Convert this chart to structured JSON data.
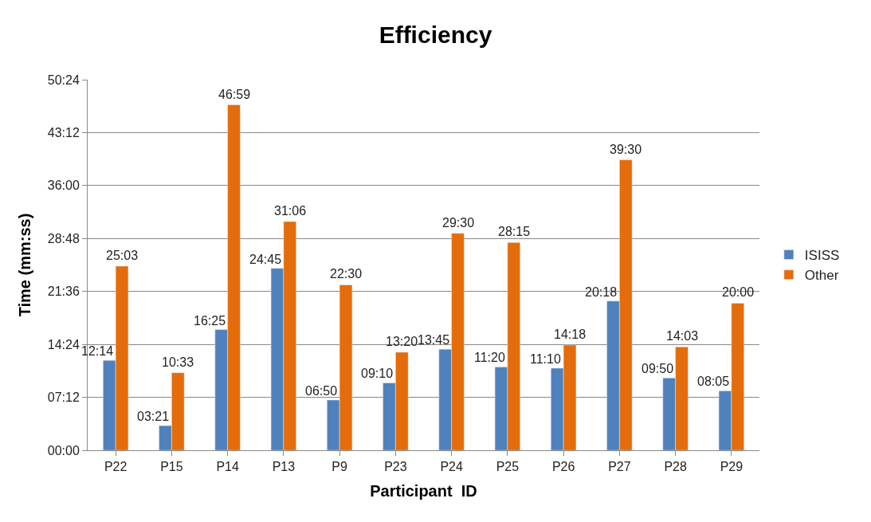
{
  "chart_data": {
    "type": "bar",
    "title": "Efficiency",
    "xlabel": "Participant  ID",
    "ylabel": "Time (mm:ss)",
    "categories": [
      "P22",
      "P15",
      "P14",
      "P13",
      "P9",
      "P23",
      "P24",
      "P25",
      "P26",
      "P27",
      "P28",
      "P29"
    ],
    "series": [
      {
        "name": "ISISS",
        "color": "#4f81bd",
        "values": [
          734,
          201,
          985,
          1485,
          410,
          550,
          825,
          680,
          670,
          1218,
          590,
          485
        ],
        "value_labels": [
          "12:14",
          "03:21",
          "16:25",
          "24:45",
          "06:50",
          "09:10",
          "13:45",
          "11:20",
          "11:10",
          "20:18",
          "09:50",
          "08:05"
        ]
      },
      {
        "name": "Other",
        "color": "#e46c0a",
        "values": [
          1503,
          633,
          2819,
          1866,
          1350,
          800,
          1770,
          1695,
          858,
          2370,
          843,
          1200
        ],
        "value_labels": [
          "25:03",
          "10:33",
          "46:59",
          "31:06",
          "22:30",
          "13:20",
          "29:30",
          "28:15",
          "14:18",
          "39:30",
          "14:03",
          "20:00"
        ]
      }
    ],
    "ylim": [
      0,
      3024
    ],
    "yticks": [
      {
        "value": 0,
        "label": "00:00"
      },
      {
        "value": 432,
        "label": "07:12"
      },
      {
        "value": 864,
        "label": "14:24"
      },
      {
        "value": 1296,
        "label": "21:36"
      },
      {
        "value": 1728,
        "label": "28:48"
      },
      {
        "value": 2160,
        "label": "36:00"
      },
      {
        "value": 2592,
        "label": "43:12"
      },
      {
        "value": 3024,
        "label": "50:24"
      }
    ],
    "grid": "y",
    "legend": "right"
  }
}
